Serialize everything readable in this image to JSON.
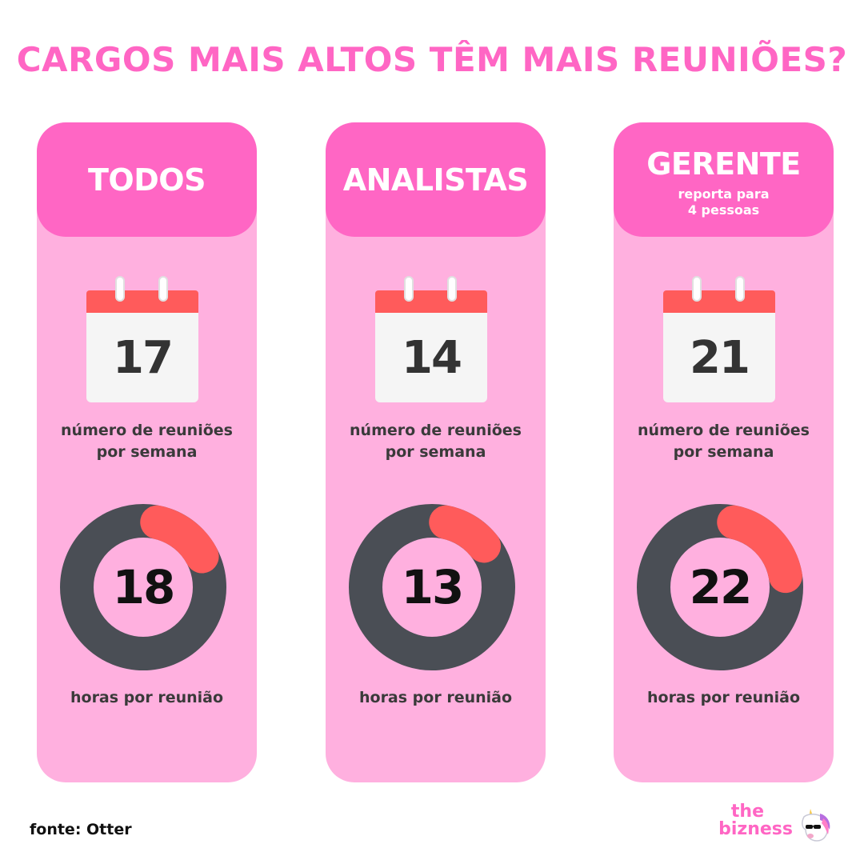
{
  "title": "CARGOS MAIS ALTOS TÊM MAIS REUNIÕES?",
  "colors": {
    "accent": "#ff66c4",
    "card_bg": "#ffb0df",
    "calendar_top": "#ff5b5b",
    "donut_track": "#4a4e55",
    "donut_highlight": "#ff5b5b"
  },
  "cards": [
    {
      "title": "TODOS",
      "subtitle": "",
      "meetings_per_week": "17",
      "meetings_label": "número de reuniões por semana",
      "hours_per_meeting": "18",
      "hours_label": "horas por reunião",
      "donut_highlight_fraction": 0.14
    },
    {
      "title": "ANALISTAS",
      "subtitle": "",
      "meetings_per_week": "14",
      "meetings_label": "número de reuniões por semana",
      "hours_per_meeting": "13",
      "hours_label": "horas por reunião",
      "donut_highlight_fraction": 0.11
    },
    {
      "title": "GERENTE",
      "subtitle": "reporta para 4 pessoas",
      "meetings_per_week": "21",
      "meetings_label": "número de reuniões por semana",
      "hours_per_meeting": "22",
      "hours_label": "horas por reunião",
      "donut_highlight_fraction": 0.19
    }
  ],
  "source": "fonte: Otter",
  "brand": {
    "line1": "the",
    "line2": "bizness",
    "icon": "unicorn-with-sunglasses-icon"
  }
}
